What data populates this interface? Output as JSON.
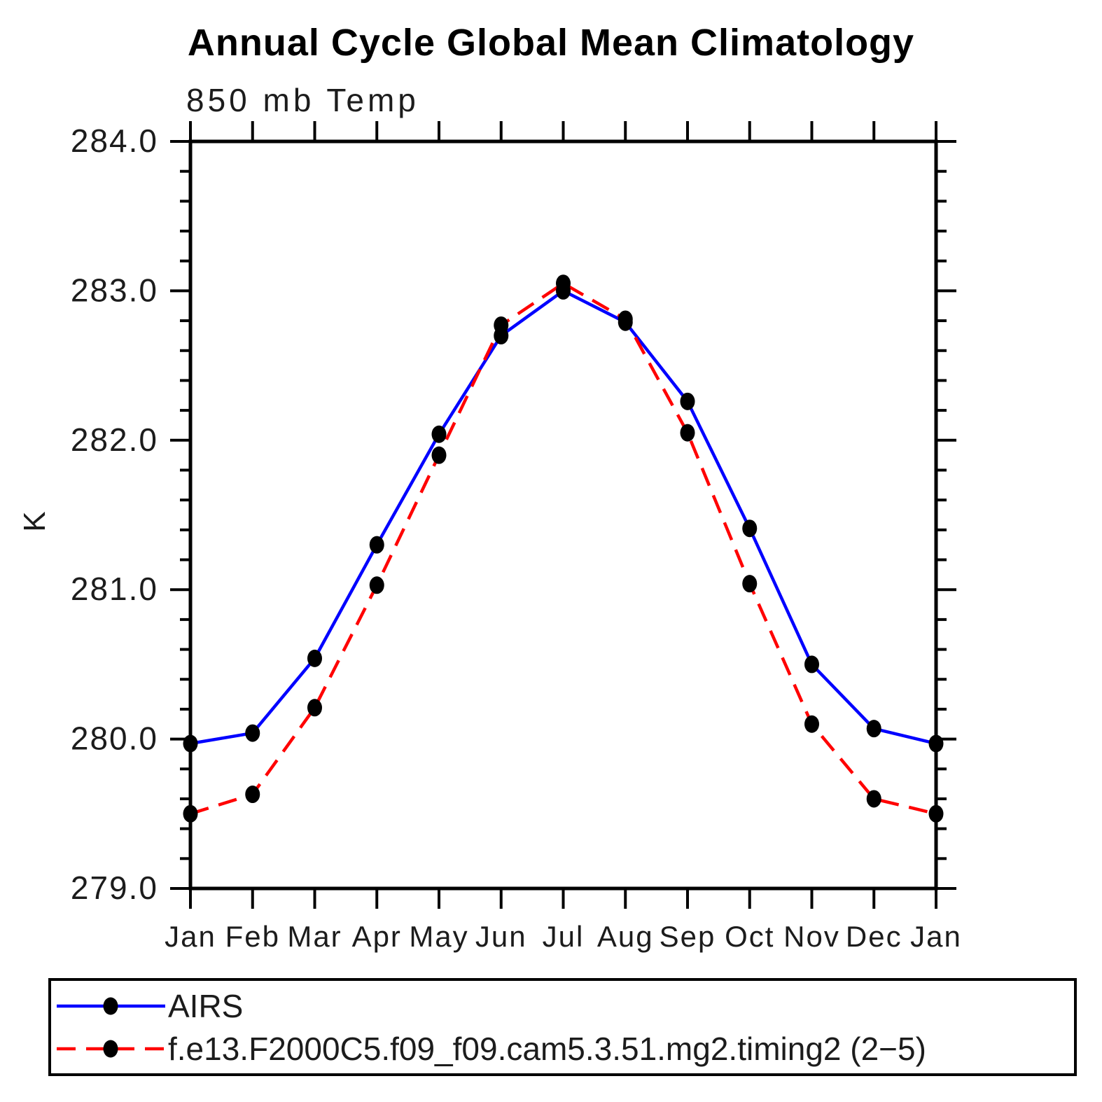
{
  "page": {
    "background": "#ffffff"
  },
  "chart_data": {
    "type": "line",
    "title": "Annual Cycle Global Mean Climatology",
    "subtitle": "850 mb Temp",
    "ylabel": "K",
    "x_tick_labels": [
      "Jan",
      "Feb",
      "Mar",
      "Apr",
      "May",
      "Jun",
      "Jul",
      "Aug",
      "Sep",
      "Oct",
      "Nov",
      "Dec",
      "Jan"
    ],
    "ylim": [
      279.0,
      284.0
    ],
    "y_major_ticks": [
      279.0,
      280.0,
      281.0,
      282.0,
      283.0,
      284.0
    ],
    "y_tick_labels": [
      "279.0",
      "280.0",
      "281.0",
      "282.0",
      "283.0",
      "284.0"
    ],
    "y_minor_step": 0.2,
    "grid": false,
    "axis_color": "#000000",
    "marker_color": "#000000",
    "legend_position": "bottom-box",
    "series": [
      {
        "name": "AIRS",
        "color": "#0000ff",
        "line_style": "solid",
        "marker": "filled-circle",
        "values": [
          279.97,
          280.04,
          280.54,
          281.3,
          282.04,
          282.7,
          283.0,
          282.79,
          282.26,
          281.41,
          280.5,
          280.07,
          279.97
        ]
      },
      {
        "name": "f.e13.F2000C5.f09_f09.cam5.3.51.mg2.timing2 (2−5)",
        "color": "#ff0000",
        "line_style": "dashed",
        "marker": "filled-circle",
        "values": [
          279.5,
          279.63,
          280.21,
          281.03,
          281.9,
          282.77,
          283.05,
          282.81,
          282.05,
          281.04,
          280.1,
          279.6,
          279.5
        ]
      }
    ]
  }
}
